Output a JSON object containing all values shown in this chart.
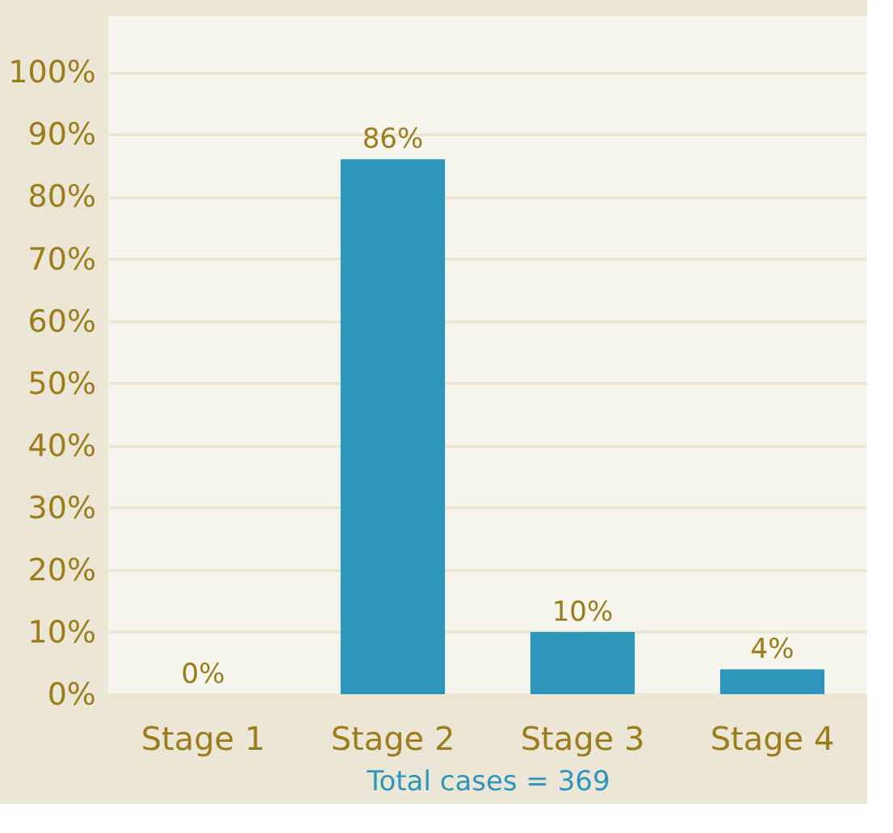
{
  "chart_data": {
    "type": "bar",
    "xlabel": "Total cases = 369",
    "categories": [
      "Stage 1",
      "Stage 2",
      "Stage 3",
      "Stage 4"
    ],
    "values": [
      0,
      86,
      10,
      4
    ],
    "color": "#2e95bb",
    "data_labels": true,
    "value_labels": [
      "0%",
      "86%",
      "10%",
      "4%"
    ],
    "ylim": [
      0,
      109
    ],
    "yticks": [
      {
        "value": 0,
        "label": "0%"
      },
      {
        "value": 10,
        "label": "10%"
      },
      {
        "value": 20,
        "label": "20%"
      },
      {
        "value": 30,
        "label": "30%"
      },
      {
        "value": 40,
        "label": "40%"
      },
      {
        "value": 50,
        "label": "50%"
      },
      {
        "value": 60,
        "label": "60%"
      },
      {
        "value": 70,
        "label": "70%"
      },
      {
        "value": 80,
        "label": "80%"
      },
      {
        "value": 90,
        "label": "90%"
      },
      {
        "value": 100,
        "label": "100%"
      }
    ],
    "grid": "y"
  }
}
